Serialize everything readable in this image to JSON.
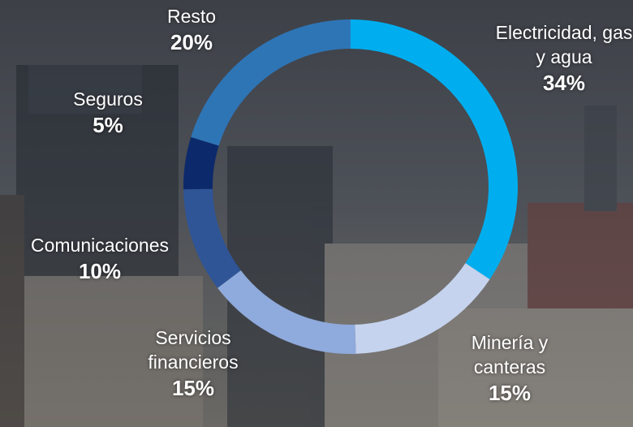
{
  "chart_data": {
    "type": "donut",
    "categories": [
      "Electricidad, gas y agua",
      "Minería y canteras",
      "Servicios financieros",
      "Comunicaciones",
      "Seguros",
      "Resto"
    ],
    "values": [
      34,
      15,
      15,
      10,
      5,
      20
    ],
    "value_labels": [
      "34%",
      "15%",
      "15%",
      "10%",
      "5%",
      "20%"
    ],
    "colors": [
      "#00aeef",
      "#c5d3ee",
      "#8faadc",
      "#2f5597",
      "#0c2a6b",
      "#2e75b6"
    ]
  }
}
